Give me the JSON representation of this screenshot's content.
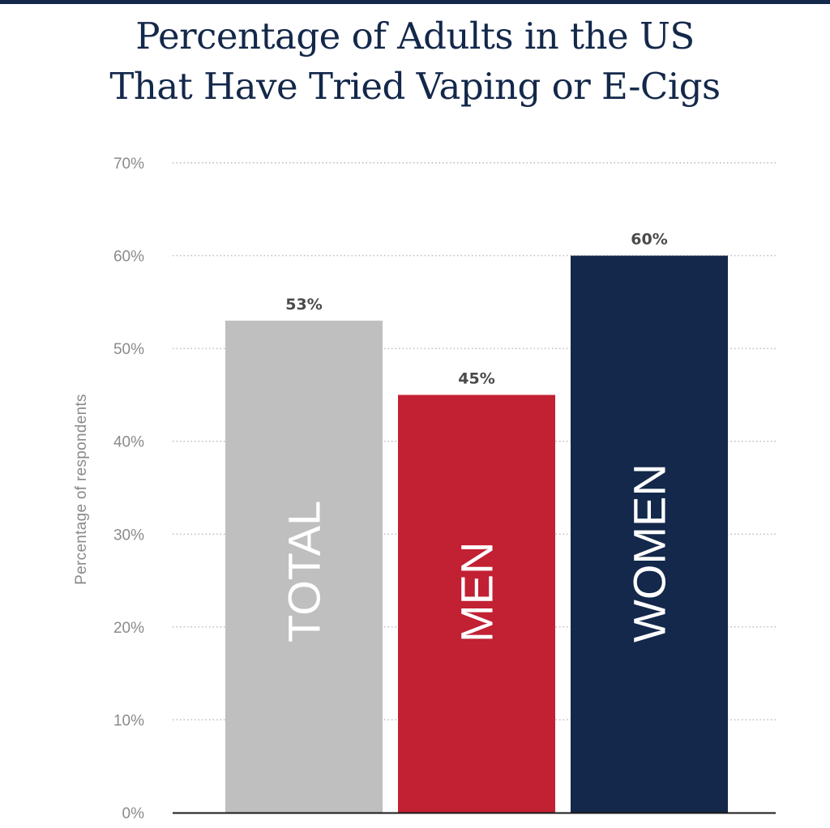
{
  "colors": {
    "rule": "#13284a",
    "title": "#13284a",
    "grid": "#b8b8b8",
    "axis": "#1a1a1a"
  },
  "chart_data": {
    "type": "bar",
    "title_lines": [
      "Percentage of Adults in the US",
      "That Have Tried Vaping or E-Cigs"
    ],
    "xlabel": "",
    "ylabel": "Percentage of respondents",
    "ylim": [
      0,
      70
    ],
    "yticks": [
      0,
      10,
      20,
      30,
      40,
      50,
      60,
      70
    ],
    "ytick_labels": [
      "0%",
      "10%",
      "20%",
      "30%",
      "40%",
      "50%",
      "60%",
      "70%"
    ],
    "grid": "dotted-horizontal",
    "legend": "none",
    "categories": [
      "TOTAL",
      "MEN",
      "WOMEN"
    ],
    "values": [
      53,
      45,
      60
    ],
    "value_labels": [
      "53%",
      "45%",
      "60%"
    ],
    "bar_colors": [
      "#bfbfbf",
      "#c22033",
      "#13284a"
    ]
  }
}
